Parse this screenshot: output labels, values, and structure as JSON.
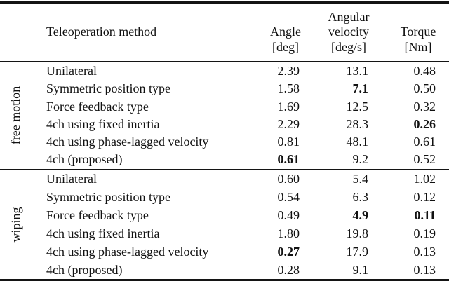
{
  "table": {
    "header": {
      "method": "Teleoperation method",
      "angle": "Angle\n[deg]",
      "angular_velocity": "Angular\nvelocity\n[deg/s]",
      "torque": "Torque\n[Nm]"
    },
    "groups": [
      {
        "label": "free motion",
        "rows": [
          {
            "method": "Unilateral",
            "angle": {
              "value": "2.39",
              "bold": false
            },
            "angular_velocity": {
              "value": "13.1",
              "bold": false
            },
            "torque": {
              "value": "0.48",
              "bold": false
            }
          },
          {
            "method": "Symmetric position type",
            "angle": {
              "value": "1.58",
              "bold": false
            },
            "angular_velocity": {
              "value": "7.1",
              "bold": true
            },
            "torque": {
              "value": "0.50",
              "bold": false
            }
          },
          {
            "method": "Force feedback type",
            "angle": {
              "value": "1.69",
              "bold": false
            },
            "angular_velocity": {
              "value": "12.5",
              "bold": false
            },
            "torque": {
              "value": "0.32",
              "bold": false
            }
          },
          {
            "method": "4ch using fixed inertia",
            "angle": {
              "value": "2.29",
              "bold": false
            },
            "angular_velocity": {
              "value": "28.3",
              "bold": false
            },
            "torque": {
              "value": "0.26",
              "bold": true
            }
          },
          {
            "method": "4ch using phase-lagged velocity",
            "angle": {
              "value": "0.81",
              "bold": false
            },
            "angular_velocity": {
              "value": "48.1",
              "bold": false
            },
            "torque": {
              "value": "0.61",
              "bold": false
            }
          },
          {
            "method": "4ch (proposed)",
            "angle": {
              "value": "0.61",
              "bold": true
            },
            "angular_velocity": {
              "value": "9.2",
              "bold": false
            },
            "torque": {
              "value": "0.52",
              "bold": false
            }
          }
        ]
      },
      {
        "label": "wiping",
        "rows": [
          {
            "method": "Unilateral",
            "angle": {
              "value": "0.60",
              "bold": false
            },
            "angular_velocity": {
              "value": "5.4",
              "bold": false
            },
            "torque": {
              "value": "1.02",
              "bold": false
            }
          },
          {
            "method": "Symmetric position type",
            "angle": {
              "value": "0.54",
              "bold": false
            },
            "angular_velocity": {
              "value": "6.3",
              "bold": false
            },
            "torque": {
              "value": "0.12",
              "bold": false
            }
          },
          {
            "method": "Force feedback type",
            "angle": {
              "value": "0.49",
              "bold": false
            },
            "angular_velocity": {
              "value": "4.9",
              "bold": true
            },
            "torque": {
              "value": "0.11",
              "bold": true
            }
          },
          {
            "method": "4ch using fixed inertia",
            "angle": {
              "value": "1.80",
              "bold": false
            },
            "angular_velocity": {
              "value": "19.8",
              "bold": false
            },
            "torque": {
              "value": "0.19",
              "bold": false
            }
          },
          {
            "method": "4ch using phase-lagged velocity",
            "angle": {
              "value": "0.27",
              "bold": true
            },
            "angular_velocity": {
              "value": "17.9",
              "bold": false
            },
            "torque": {
              "value": "0.13",
              "bold": false
            }
          },
          {
            "method": "4ch (proposed)",
            "angle": {
              "value": "0.28",
              "bold": false
            },
            "angular_velocity": {
              "value": "9.1",
              "bold": false
            },
            "torque": {
              "value": "0.13",
              "bold": false
            }
          }
        ]
      }
    ],
    "colors": {
      "text": "#111111",
      "rule": "#141414",
      "background": "#ffffff"
    }
  }
}
